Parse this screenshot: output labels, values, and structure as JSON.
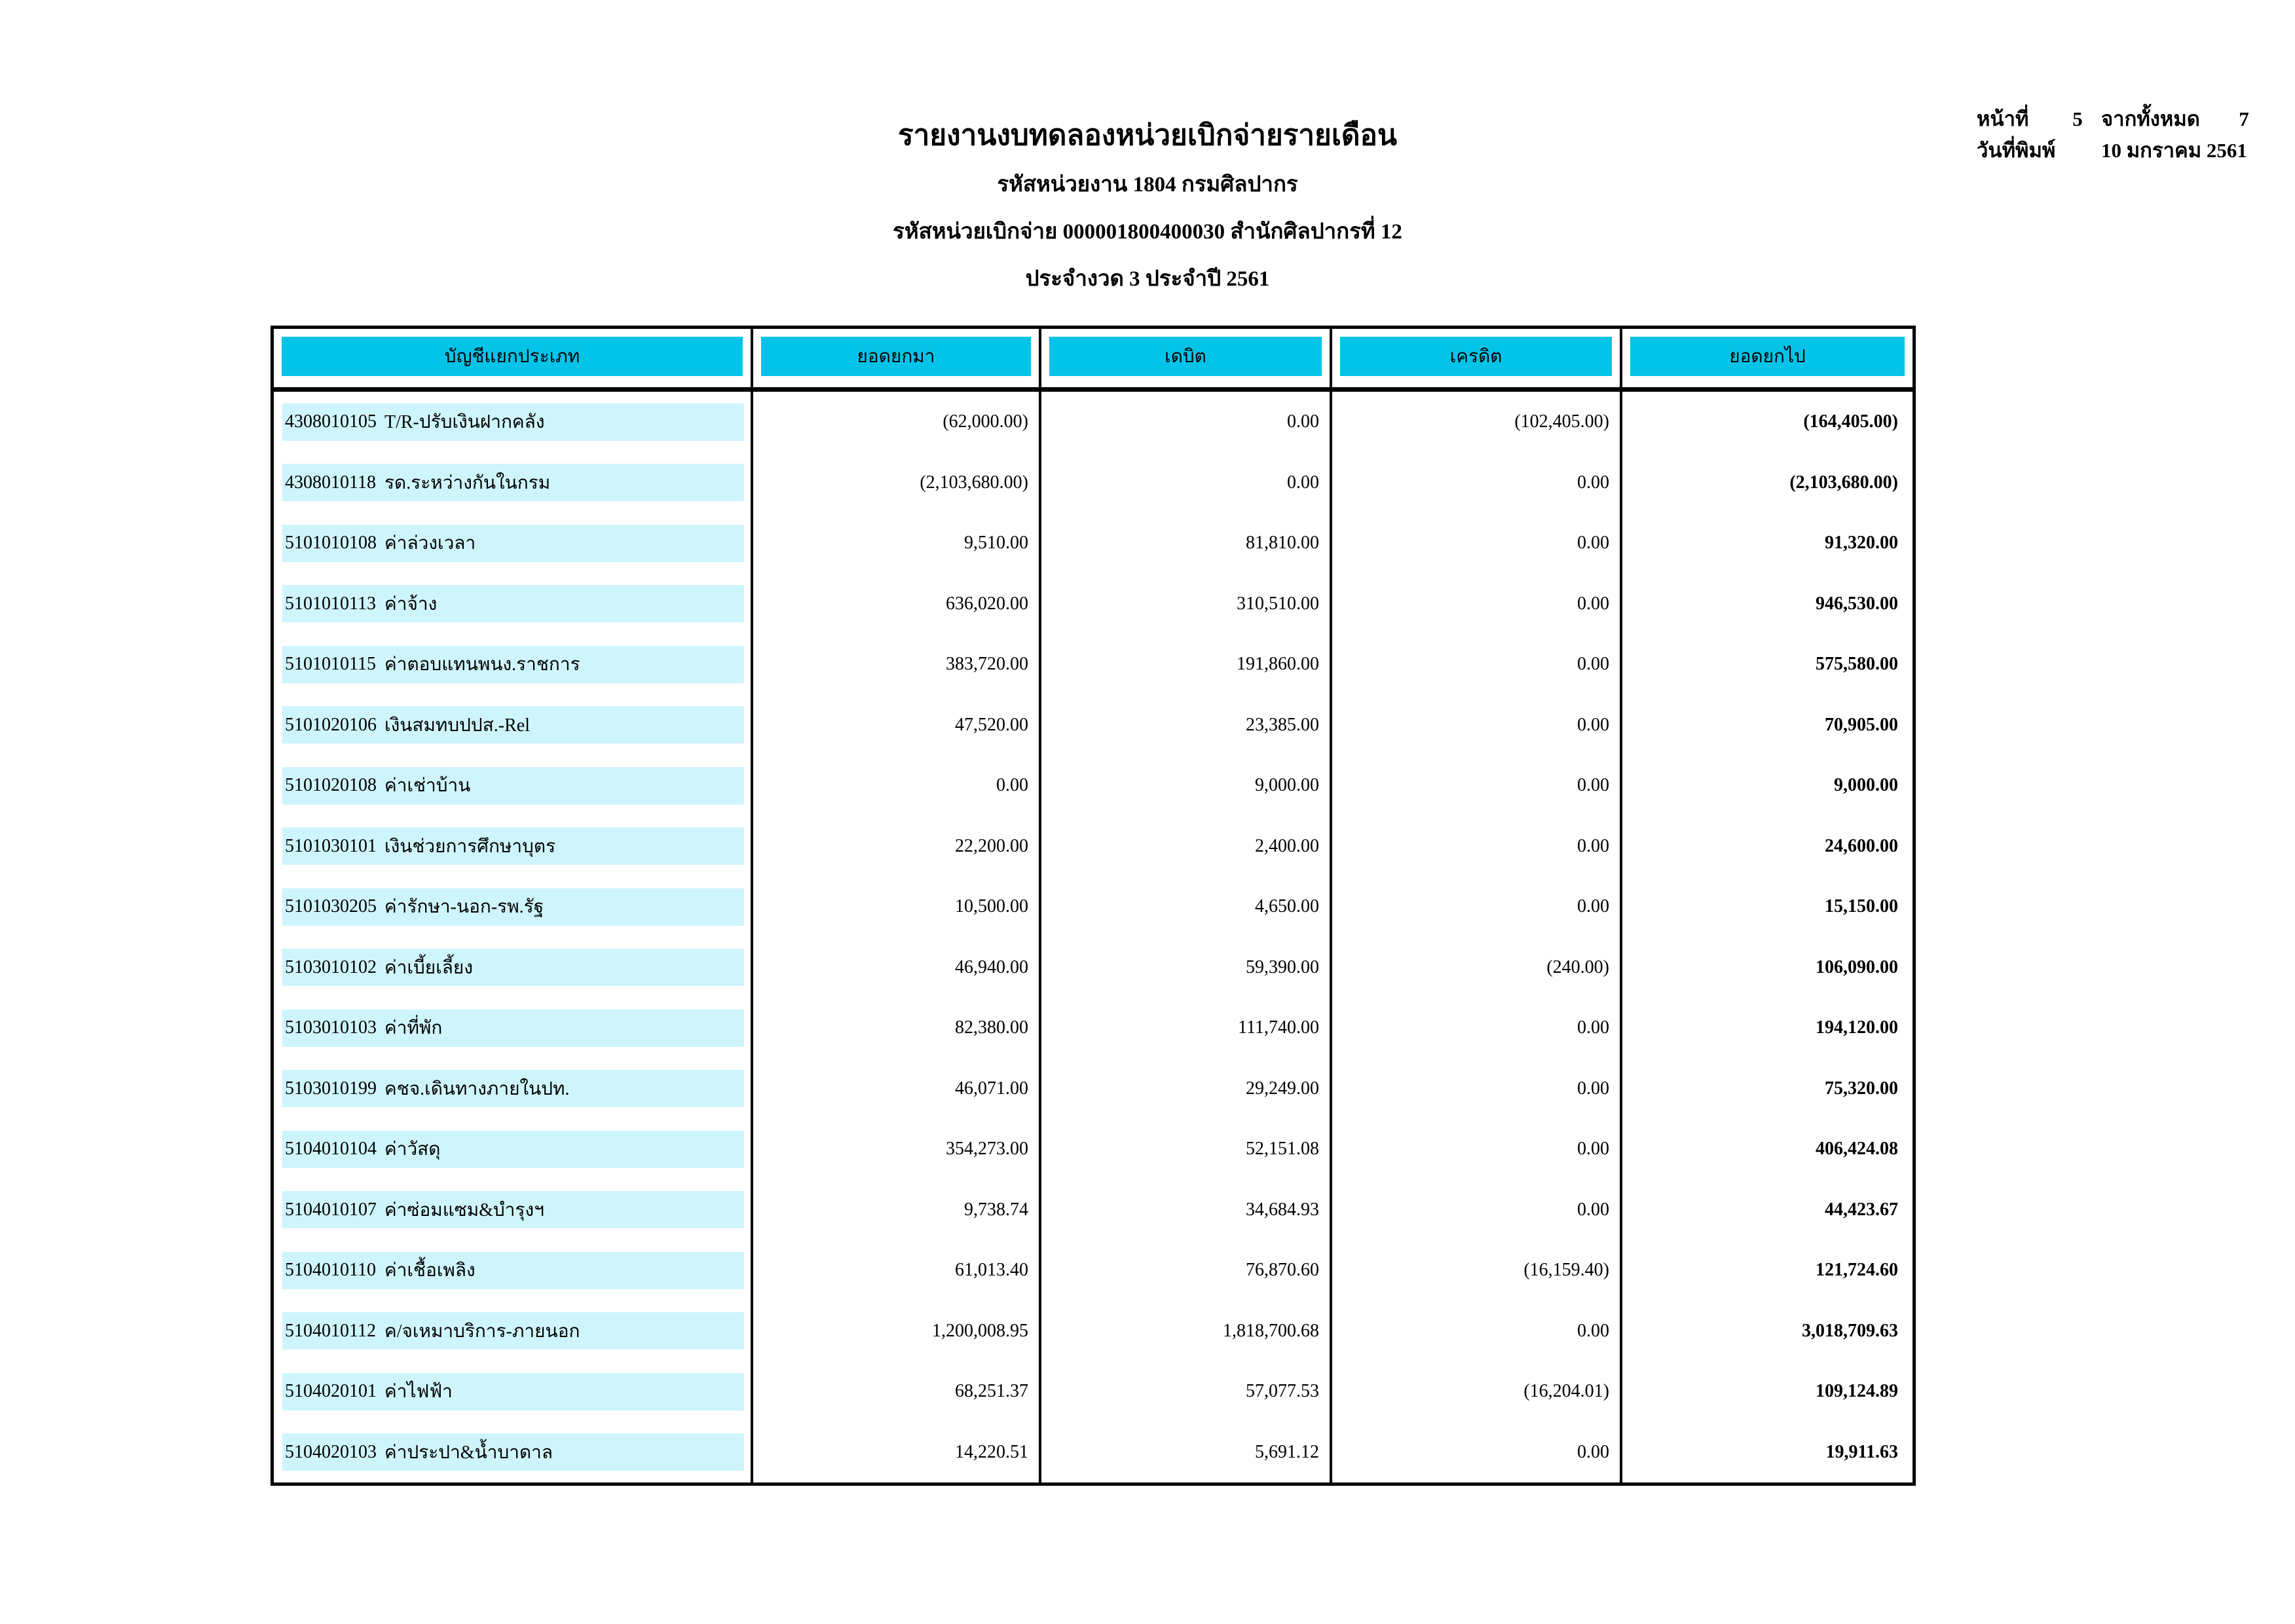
{
  "page_info": {
    "page_label": "หน้าที่",
    "page_number": "5",
    "total_label": "จากทั้งหมด",
    "total_pages": "7",
    "print_date_label": "วันที่พิมพ์",
    "print_date": "10 มกราคม 2561"
  },
  "report_header": {
    "title": "รายงานงบทดลองหน่วยเบิกจ่ายรายเดือน",
    "agency_line": "รหัสหน่วยงาน 1804 กรมศิลปากร",
    "disbursement_line": "รหัสหน่วยเบิกจ่าย 000001800400030 สำนักศิลปากรที่ 12",
    "period_line": "ประจำงวด 3 ประจำปี 2561"
  },
  "colors": {
    "header_cell": "#04C3E8",
    "row_band": "#CFF5FC",
    "border": "#000000"
  },
  "table": {
    "columns": [
      "บัญชีแยกประเภท",
      "ยอดยกมา",
      "เดบิต",
      "เครดิต",
      "ยอดยกไป"
    ],
    "rows": [
      {
        "code": "4308010105",
        "name": "T/R-ปรับเงินฝากคลัง",
        "carry_forward": "(62,000.00)",
        "debit": "0.00",
        "credit": "(102,405.00)",
        "balance": "(164,405.00)"
      },
      {
        "code": "4308010118",
        "name": "รด.ระหว่างกันในกรม",
        "carry_forward": "(2,103,680.00)",
        "debit": "0.00",
        "credit": "0.00",
        "balance": "(2,103,680.00)"
      },
      {
        "code": "5101010108",
        "name": "ค่าล่วงเวลา",
        "carry_forward": "9,510.00",
        "debit": "81,810.00",
        "credit": "0.00",
        "balance": "91,320.00"
      },
      {
        "code": "5101010113",
        "name": "ค่าจ้าง",
        "carry_forward": "636,020.00",
        "debit": "310,510.00",
        "credit": "0.00",
        "balance": "946,530.00"
      },
      {
        "code": "5101010115",
        "name": "ค่าตอบแทนพนง.ราชการ",
        "carry_forward": "383,720.00",
        "debit": "191,860.00",
        "credit": "0.00",
        "balance": "575,580.00"
      },
      {
        "code": "5101020106",
        "name": "เงินสมทบปปส.-Rel",
        "carry_forward": "47,520.00",
        "debit": "23,385.00",
        "credit": "0.00",
        "balance": "70,905.00"
      },
      {
        "code": "5101020108",
        "name": "ค่าเช่าบ้าน",
        "carry_forward": "0.00",
        "debit": "9,000.00",
        "credit": "0.00",
        "balance": "9,000.00"
      },
      {
        "code": "5101030101",
        "name": "เงินช่วยการศึกษาบุตร",
        "carry_forward": "22,200.00",
        "debit": "2,400.00",
        "credit": "0.00",
        "balance": "24,600.00"
      },
      {
        "code": "5101030205",
        "name": "ค่ารักษา-นอก-รพ.รัฐ",
        "carry_forward": "10,500.00",
        "debit": "4,650.00",
        "credit": "0.00",
        "balance": "15,150.00"
      },
      {
        "code": "5103010102",
        "name": "ค่าเบี้ยเลี้ยง",
        "carry_forward": "46,940.00",
        "debit": "59,390.00",
        "credit": "(240.00)",
        "balance": "106,090.00"
      },
      {
        "code": "5103010103",
        "name": "ค่าที่พัก",
        "carry_forward": "82,380.00",
        "debit": "111,740.00",
        "credit": "0.00",
        "balance": "194,120.00"
      },
      {
        "code": "5103010199",
        "name": "คชจ.เดินทางภายในปท.",
        "carry_forward": "46,071.00",
        "debit": "29,249.00",
        "credit": "0.00",
        "balance": "75,320.00"
      },
      {
        "code": "5104010104",
        "name": "ค่าวัสดุ",
        "carry_forward": "354,273.00",
        "debit": "52,151.08",
        "credit": "0.00",
        "balance": "406,424.08"
      },
      {
        "code": "5104010107",
        "name": "ค่าซ่อมแซม&บำรุงฯ",
        "carry_forward": "9,738.74",
        "debit": "34,684.93",
        "credit": "0.00",
        "balance": "44,423.67"
      },
      {
        "code": "5104010110",
        "name": "ค่าเชื้อเพลิง",
        "carry_forward": "61,013.40",
        "debit": "76,870.60",
        "credit": "(16,159.40)",
        "balance": "121,724.60"
      },
      {
        "code": "5104010112",
        "name": "ค/จเหมาบริการ-ภายนอก",
        "carry_forward": "1,200,008.95",
        "debit": "1,818,700.68",
        "credit": "0.00",
        "balance": "3,018,709.63"
      },
      {
        "code": "5104020101",
        "name": "ค่าไฟฟ้า",
        "carry_forward": "68,251.37",
        "debit": "57,077.53",
        "credit": "(16,204.01)",
        "balance": "109,124.89"
      },
      {
        "code": "5104020103",
        "name": "ค่าประปา&น้ำบาดาล",
        "carry_forward": "14,220.51",
        "debit": "5,691.12",
        "credit": "0.00",
        "balance": "19,911.63"
      }
    ]
  }
}
